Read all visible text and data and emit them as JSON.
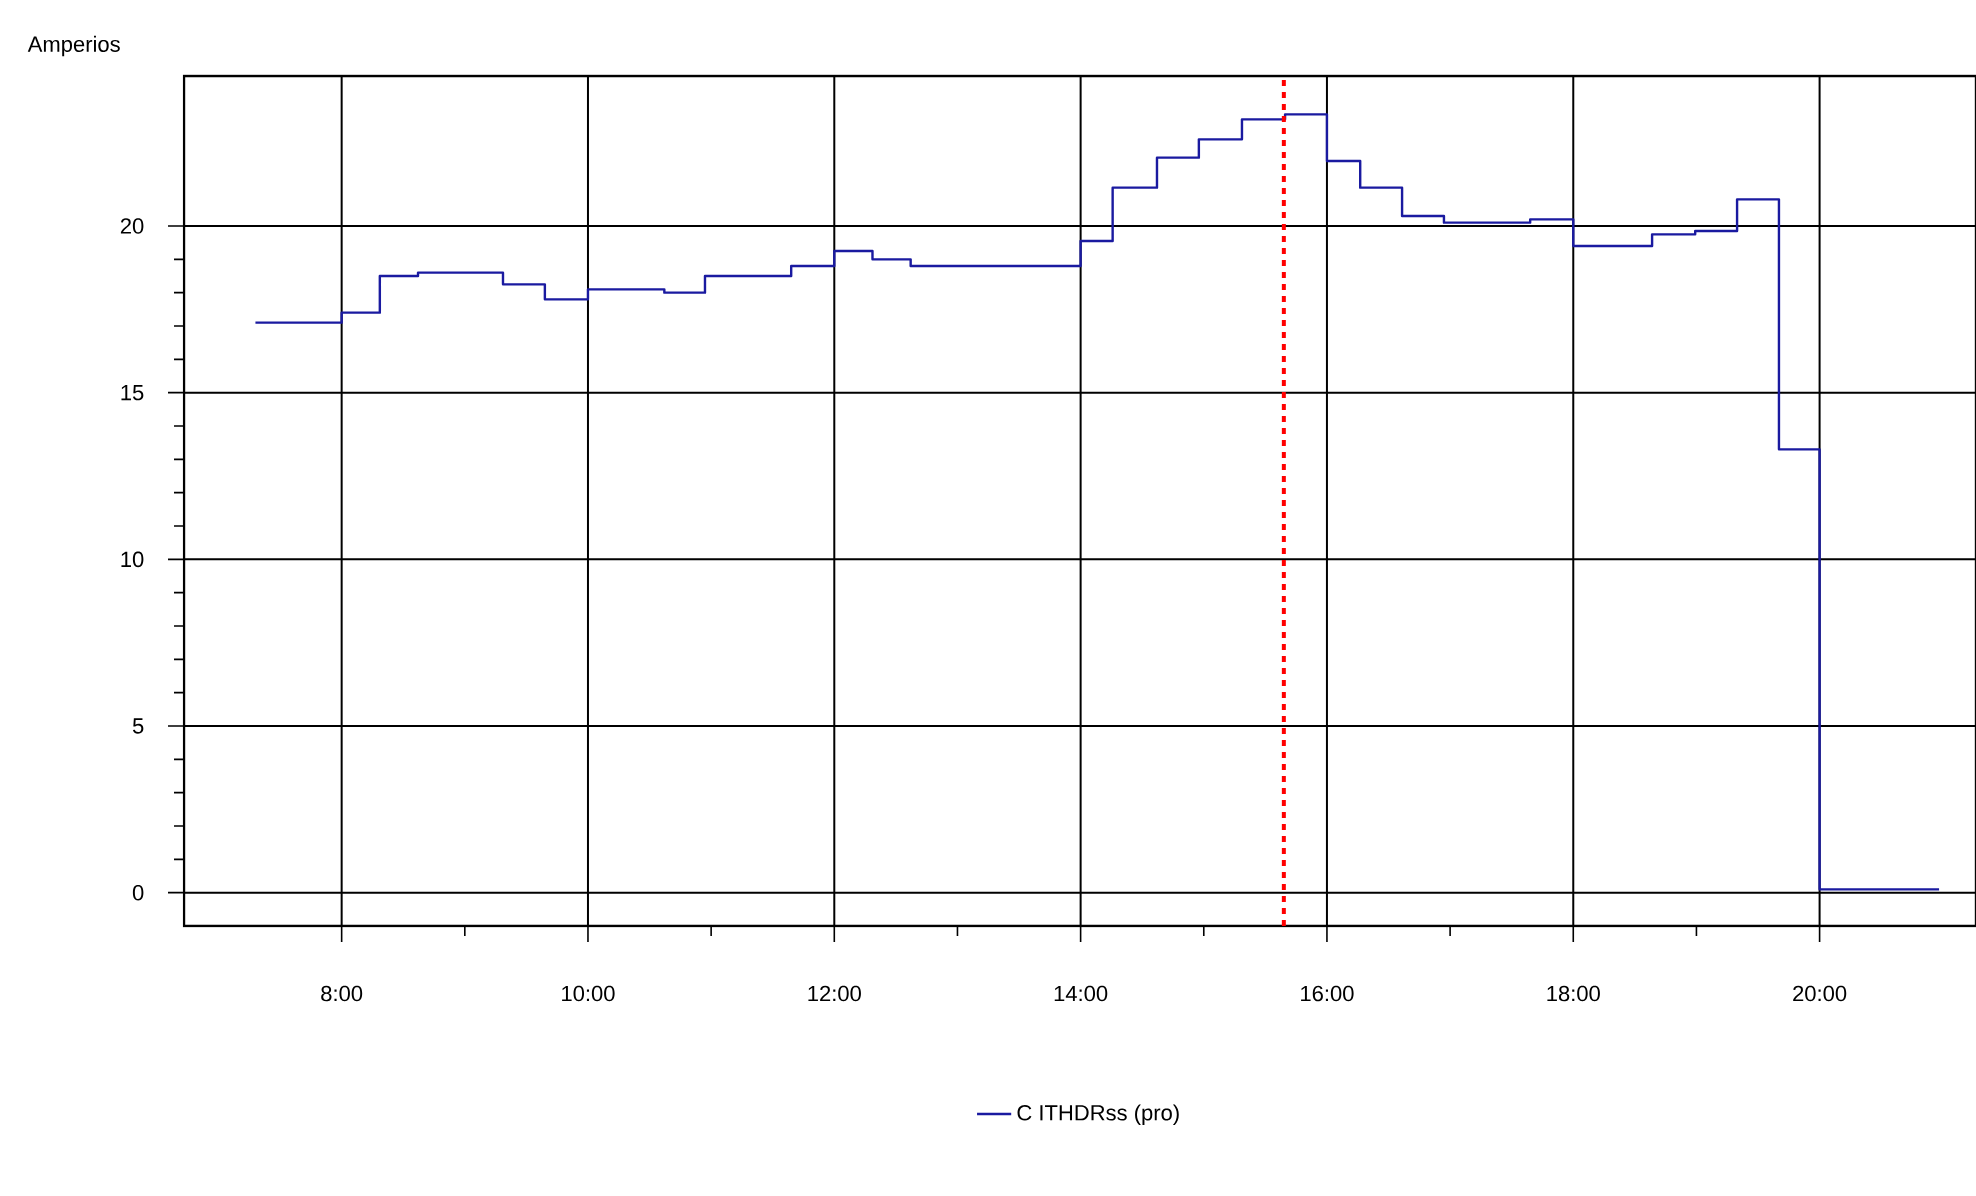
{
  "chart_data": {
    "type": "step",
    "ylabel": "Amperios",
    "x": [
      7.3,
      8.0,
      8.31,
      8.62,
      9.31,
      9.65,
      10.0,
      10.62,
      10.95,
      11.65,
      12.0,
      12.31,
      12.62,
      14.0,
      14.26,
      14.62,
      14.96,
      15.31,
      15.66,
      16.0,
      16.27,
      16.61,
      16.95,
      17.65,
      18.0,
      18.64,
      18.99,
      19.33,
      19.67,
      20.0,
      20.97
    ],
    "series": [
      {
        "name": "C ITHDRss (pro)",
        "color": "#1a1aa0",
        "values": [
          17.1,
          17.4,
          18.5,
          18.6,
          18.25,
          17.8,
          18.1,
          18.0,
          18.5,
          18.8,
          19.25,
          19.0,
          18.8,
          19.55,
          21.15,
          22.05,
          22.6,
          23.2,
          23.35,
          21.95,
          21.15,
          20.3,
          20.1,
          20.2,
          19.4,
          19.75,
          19.85,
          20.8,
          13.3,
          0.1,
          0.1
        ]
      }
    ],
    "xlim": [
      6.72,
      21.27
    ],
    "ylim": [
      -1.0,
      24.5
    ],
    "xticks": [
      {
        "value": 8,
        "label": "8:00"
      },
      {
        "value": 10,
        "label": "10:00"
      },
      {
        "value": 12,
        "label": "12:00"
      },
      {
        "value": 14,
        "label": "14:00"
      },
      {
        "value": 16,
        "label": "16:00"
      },
      {
        "value": 18,
        "label": "18:00"
      },
      {
        "value": 20,
        "label": "20:00"
      }
    ],
    "yticks": [
      0,
      5,
      10,
      15,
      20
    ],
    "grid": true,
    "legend": "bottom",
    "line_style": "solid",
    "marker": "none",
    "ref_lines": [
      {
        "axis": "x",
        "value": 15.65,
        "color": "#ff0000",
        "line_style": "dashed"
      }
    ]
  }
}
